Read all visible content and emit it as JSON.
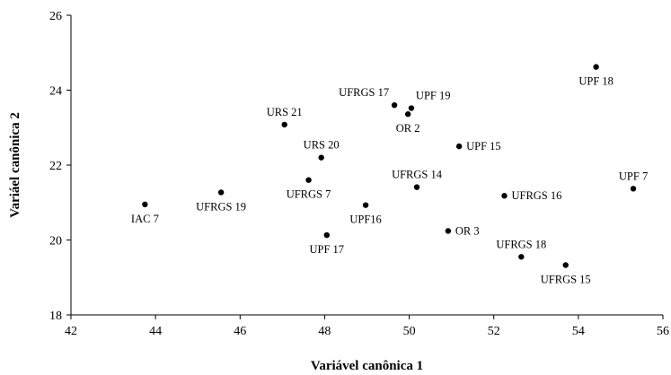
{
  "chart_data": {
    "type": "scatter",
    "xlabel": "Variável canônica 1",
    "ylabel": "Variáel canônica 2",
    "xlim": [
      42,
      56
    ],
    "ylim": [
      18,
      26
    ],
    "x_ticks": [
      "42",
      "44",
      "46",
      "48",
      "50",
      "52",
      "54",
      "56"
    ],
    "y_ticks": [
      "18",
      "20",
      "22",
      "24",
      "26"
    ],
    "grid": false,
    "marker_color": "#000000",
    "points": [
      {
        "label": "IAC 7",
        "x": 43.75,
        "y": 20.95,
        "pos": "below"
      },
      {
        "label": "UFRGS 19",
        "x": 45.55,
        "y": 21.27,
        "pos": "below"
      },
      {
        "label": "URS 21",
        "x": 47.05,
        "y": 23.08,
        "pos": "above"
      },
      {
        "label": "URS 20",
        "x": 47.92,
        "y": 22.2,
        "pos": "above"
      },
      {
        "label": "UFRGS 7",
        "x": 47.62,
        "y": 21.6,
        "pos": "below"
      },
      {
        "label": "UPF 17",
        "x": 48.05,
        "y": 20.13,
        "pos": "below"
      },
      {
        "label": "UPF16",
        "x": 48.97,
        "y": 20.93,
        "pos": "below"
      },
      {
        "label": "UFRGS 17",
        "x": 49.65,
        "y": 23.6,
        "pos": "above-left"
      },
      {
        "label": "UPF 19",
        "x": 50.05,
        "y": 23.52,
        "pos": "above-right"
      },
      {
        "label": "OR 2",
        "x": 49.97,
        "y": 23.36,
        "pos": "below"
      },
      {
        "label": "UFRGS 14",
        "x": 50.18,
        "y": 21.41,
        "pos": "above"
      },
      {
        "label": "UPF 15",
        "x": 51.18,
        "y": 22.5,
        "pos": "right"
      },
      {
        "label": "OR 3",
        "x": 50.92,
        "y": 20.24,
        "pos": "right"
      },
      {
        "label": "UFRGS 16",
        "x": 52.25,
        "y": 21.18,
        "pos": "right"
      },
      {
        "label": "UFRGS 18",
        "x": 52.65,
        "y": 19.55,
        "pos": "above"
      },
      {
        "label": "UFRGS 15",
        "x": 53.7,
        "y": 19.33,
        "pos": "below"
      },
      {
        "label": "UPF 18",
        "x": 54.42,
        "y": 24.62,
        "pos": "below"
      },
      {
        "label": "UPF 7",
        "x": 55.3,
        "y": 21.37,
        "pos": "above"
      }
    ]
  }
}
